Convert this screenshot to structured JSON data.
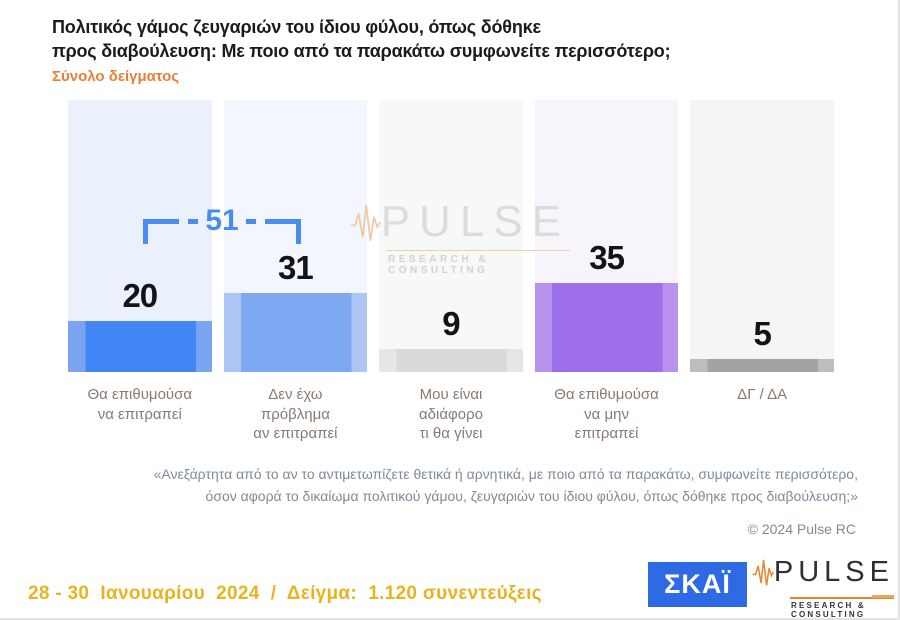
{
  "header": {
    "title_line1": "Πολιτικός γάμος ζευγαριών του ίδιου φύλου, όπως δόθηκε",
    "title_line2": "προς διαβούλευση: Με ποιο από τα παρακάτω συμφωνείτε περισσότερο;",
    "subtitle": "Σύνολο δείγματος"
  },
  "chart_data": {
    "type": "bar",
    "title": "Πολιτικός γάμος ζευγαριών του ίδιου φύλου, όπως δόθηκε προς διαβούλευση: Με ποιο από τα παρακάτω συμφωνείτε περισσότερο;",
    "subtitle": "Σύνολο δείγματος",
    "categories": [
      "Θα επιθυμούσα\nνα επιτραπεί",
      "Δεν έχω\nπρόβλημα\nαν επιτραπεί",
      "Μου είναι\nαδιάφορο\nτι θα γίνει",
      "Θα επιθυμούσα\nνα μην\nεπιτραπεί",
      "ΔΓ / ΔΑ"
    ],
    "values": [
      20,
      31,
      9,
      35,
      5
    ],
    "ylim": [
      0,
      100
    ],
    "grid": false,
    "legend": false,
    "bracket": {
      "label": "51",
      "from_index": 0,
      "to_index": 1,
      "meaning": "sum of first two bars"
    },
    "bar_colors": [
      "#4285f4",
      "#7fa8f2",
      "#dadada",
      "#9d6fe8",
      "#a3a3a3"
    ],
    "bar_edge_colors": [
      "#7ba4f0",
      "#aec6f6",
      "#e6e6e6",
      "#b893ee",
      "#bdbdbd"
    ],
    "column_bg_colors": [
      "#eaf1fd",
      "#f3f6fe",
      "#f8f8f8",
      "#f8f4fc",
      "#f5f5f4"
    ]
  },
  "watermark": {
    "brand": "PULSE",
    "tagline": "RESEARCH & CONSULTING"
  },
  "quote": {
    "line1": "«Ανεξάρτητα από το αν το αντιμετωπίζετε θετικά ή αρνητικά, με ποιο από τα παρακάτω, συμφωνείτε περισσότερο,",
    "line2": "όσον αφορά το δικαίωμα πολιτικού γάμου, ζευγαριών του ίδιου φύλου, όπως δόθηκε προς διαβούλευση;»"
  },
  "copyright": "© 2024 Pulse RC",
  "footer": {
    "date_sample": "28 - 30  Ιανουαρίου  2024  /  Δείγμα:  1.120 συνεντεύξεις",
    "skai_logo_text": "ΣΚΑΪ",
    "pulse_logo_brand": "PULSE",
    "pulse_logo_tagline": "RESEARCH & CONSULTING"
  },
  "colors": {
    "accent_orange": "#e87e3a",
    "footer_gold": "#e7b41f",
    "bracket_blue": "#4a8df1",
    "category_label": "#8a7a70",
    "quote_gray": "#7d8b98",
    "skai_blue": "#2e6ae4",
    "pulse_orange": "#e8862d"
  }
}
